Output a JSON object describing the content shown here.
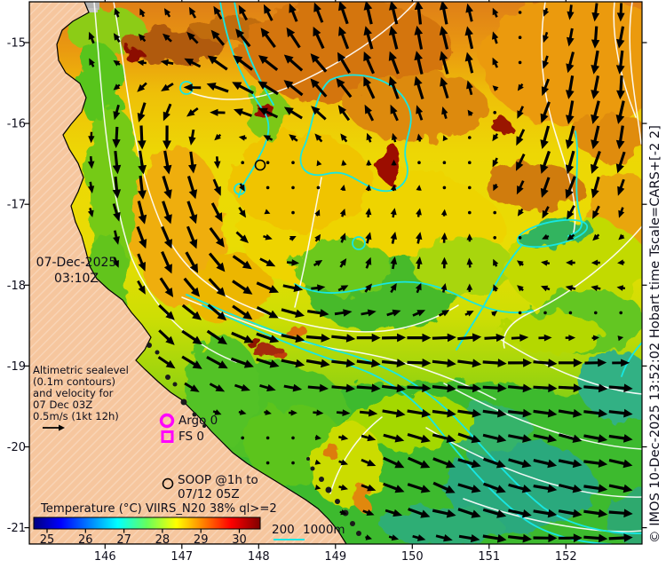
{
  "timestamp": {
    "date": "07-Dec-2025",
    "time": "03:10Z"
  },
  "info": {
    "lines": [
      "Altimetric sealevel",
      "(0.1m contours)",
      "and velocity for",
      "07 Dec 03Z",
      "0.5m/s (1kt 12h)"
    ]
  },
  "legend": {
    "argo": "Argo 0",
    "fs": "FS 0",
    "soop_line1": "SOOP @1h to",
    "soop_line2": "07/12 05Z"
  },
  "colorbar": {
    "title": "Temperature (°C) VIIRS_N20 38% ql>=2",
    "ticks": [
      "25",
      "26",
      "27",
      "28",
      "29",
      "30"
    ],
    "gradient_stops": [
      [
        "0%",
        "#00007f"
      ],
      [
        "12%",
        "#0000ff"
      ],
      [
        "37%",
        "#00ffff"
      ],
      [
        "50%",
        "#66ff5c"
      ],
      [
        "63%",
        "#ffff00"
      ],
      [
        "87%",
        "#ff0000"
      ],
      [
        "100%",
        "#7f0000"
      ]
    ]
  },
  "scalebar": {
    "label": "200 1000m"
  },
  "credit": "© IMOS 10-Dec-2025 13:52:02 Hobart time Tscale=CARS+[-2 2]",
  "axes": {
    "x_ticks": [
      "146",
      "147",
      "148",
      "149",
      "150",
      "151",
      "152"
    ],
    "y_ticks": [
      "-15",
      "-16",
      "-17",
      "-18",
      "-19",
      "-20",
      "-21"
    ]
  },
  "markers": {
    "soop_on_map": 1,
    "argo_on_map": 0,
    "fs_on_map": 0
  },
  "colors": {
    "background": "#ffffff",
    "land": "#f6c69e",
    "coastline": "#000000",
    "sealevel_contour": "#ffffff",
    "bathymetry_contour": "#17e7e3",
    "velocity_vector": "#000000",
    "argo_fs_marker": "#ff00ff",
    "text": "#0e0e1c"
  }
}
